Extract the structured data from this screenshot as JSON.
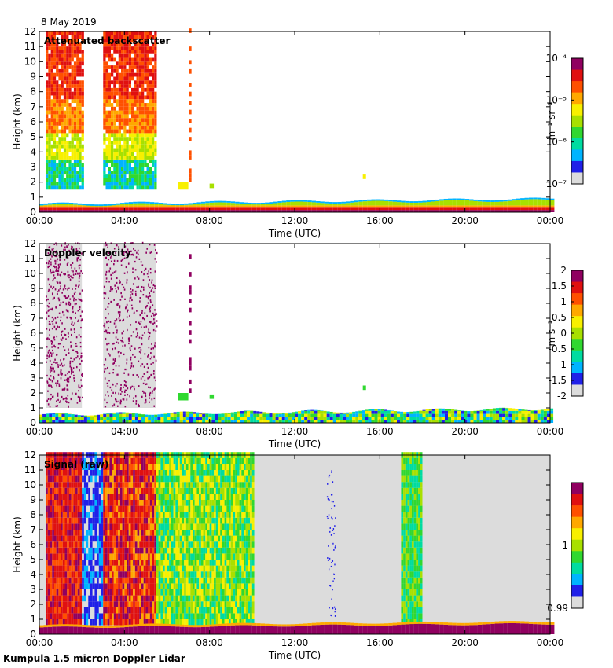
{
  "figure": {
    "date": "8 May 2019",
    "footer": "Kumpula 1.5 micron Doppler Lidar"
  },
  "colors": {
    "ramp": [
      "#dcdcdc",
      "#2020e8",
      "#00b4ff",
      "#00dca0",
      "#30d830",
      "#a8e000",
      "#f8f000",
      "#ffa800",
      "#ff5000",
      "#e01010",
      "#900060"
    ],
    "empty": "#ffffff",
    "text": "#000000"
  },
  "chart_data": [
    {
      "type": "heatmap",
      "title": "Attenuated backscatter",
      "xlabel": "Time (UTC)",
      "ylabel": "Height (km)",
      "xlim": [
        0,
        24
      ],
      "ylim": [
        0,
        12
      ],
      "xticks": [
        "00:00",
        "04:00",
        "08:00",
        "12:00",
        "16:00",
        "20:00",
        "00:00"
      ],
      "yticks": [
        "0",
        "1",
        "2",
        "3",
        "4",
        "5",
        "6",
        "7",
        "8",
        "9",
        "10",
        "11",
        "12"
      ],
      "colorbar": {
        "label": "m⁻¹ sr⁻¹",
        "scale": "log",
        "ticks": [
          "10⁻⁴",
          "10⁻⁵",
          "10⁻⁶",
          "10⁻⁷"
        ],
        "range": [
          1e-07,
          0.0001
        ]
      },
      "features": [
        {
          "name": "precipitation/cloud column",
          "t_start": 0.3,
          "t_end": 2.0,
          "h_min": 1.5,
          "h_max": 12
        },
        {
          "name": "precipitation/cloud column",
          "t_start": 3.0,
          "t_end": 5.5,
          "h_min": 1.5,
          "h_max": 12
        },
        {
          "name": "boundary layer",
          "t_start": 0,
          "t_end": 24,
          "h_min": 0,
          "h_max": 1.0
        }
      ]
    },
    {
      "type": "heatmap",
      "title": "Doppler velocity",
      "xlabel": "Time (UTC)",
      "ylabel": "Height (km)",
      "xlim": [
        0,
        24
      ],
      "ylim": [
        0,
        12
      ],
      "xticks": [
        "00:00",
        "04:00",
        "08:00",
        "12:00",
        "16:00",
        "20:00",
        "00:00"
      ],
      "yticks": [
        "0",
        "1",
        "2",
        "3",
        "4",
        "5",
        "6",
        "7",
        "8",
        "9",
        "10",
        "11",
        "12"
      ],
      "colorbar": {
        "label": "m s⁻¹",
        "scale": "linear",
        "ticks": [
          "2",
          "1.5",
          "1",
          "0.5",
          "0",
          "-0.5",
          "-1",
          "-1.5",
          "-2"
        ],
        "range": [
          -2,
          2
        ]
      },
      "features": [
        {
          "name": "noisy column",
          "t_start": 0.3,
          "t_end": 2.0,
          "h_min": 1.0,
          "h_max": 12
        },
        {
          "name": "noisy column",
          "t_start": 3.0,
          "t_end": 5.5,
          "h_min": 1.0,
          "h_max": 12
        },
        {
          "name": "boundary layer",
          "t_start": 0,
          "t_end": 24,
          "h_min": 0,
          "h_max": 1.0
        }
      ]
    },
    {
      "type": "heatmap",
      "title": "Signal (raw)",
      "xlabel": "Time (UTC)",
      "ylabel": "Height (km)",
      "xlim": [
        0,
        24
      ],
      "ylim": [
        0,
        12
      ],
      "xticks": [
        "00:00",
        "04:00",
        "08:00",
        "12:00",
        "16:00",
        "20:00",
        "00:00"
      ],
      "yticks": [
        "0",
        "1",
        "2",
        "3",
        "4",
        "5",
        "6",
        "7",
        "8",
        "9",
        "10",
        "11",
        "12"
      ],
      "colorbar": {
        "label": "",
        "scale": "linear",
        "ticks": [
          "1",
          "0.99"
        ],
        "range": [
          0.99,
          1.01
        ]
      },
      "features": [
        {
          "name": "high signal",
          "t_start": 0.3,
          "t_end": 2.0
        },
        {
          "name": "low signal",
          "t_start": 2.0,
          "t_end": 3.0
        },
        {
          "name": "high signal",
          "t_start": 3.0,
          "t_end": 5.5
        },
        {
          "name": "moderate signal",
          "t_start": 5.5,
          "t_end": 10.0
        },
        {
          "name": "background",
          "t_start": 10.0,
          "t_end": 17.0
        },
        {
          "name": "moderate signal",
          "t_start": 17.0,
          "t_end": 18.0
        },
        {
          "name": "background",
          "t_start": 18.0,
          "t_end": 24.0
        }
      ]
    }
  ]
}
